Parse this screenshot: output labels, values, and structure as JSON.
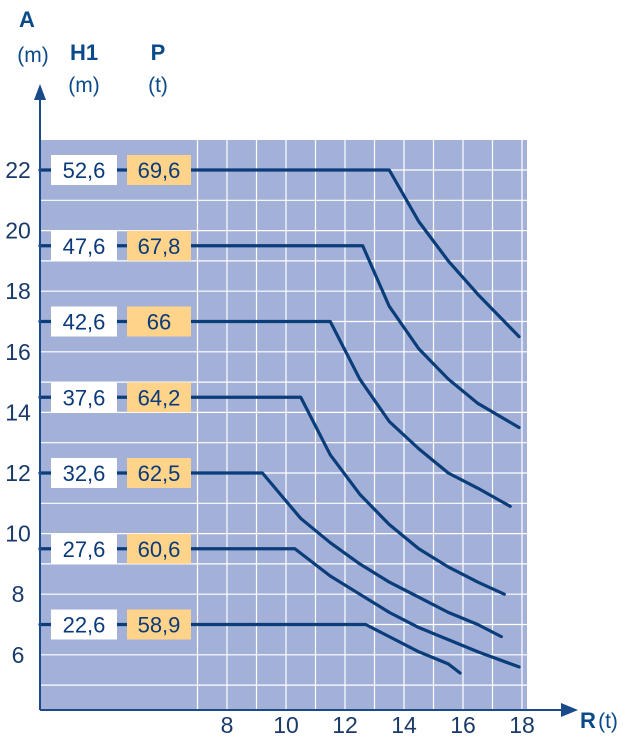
{
  "chart_data": {
    "type": "line",
    "y_axis": {
      "letter": "A",
      "unit": "(m)",
      "ticks": [
        6,
        8,
        10,
        12,
        14,
        16,
        18,
        20,
        22
      ]
    },
    "x_axis": {
      "letter": "R",
      "unit": "(t)",
      "ticks": [
        8,
        10,
        12,
        14,
        16,
        18
      ]
    },
    "column_headers": [
      {
        "title": "H1",
        "unit": "(m)"
      },
      {
        "title": "P",
        "unit": "(t)"
      }
    ],
    "grid": true,
    "colors": {
      "plot_bg": "#a3b1d9",
      "grid": "#ffffff",
      "line": "#0a3d7a",
      "box_p": "#ffd38a",
      "box_h": "#ffffff"
    },
    "series": [
      {
        "H1": "52,6",
        "P": "69,6",
        "A": 22,
        "points": [
          [
            13.5,
            22
          ],
          [
            14.5,
            20.3
          ],
          [
            15.5,
            19.0
          ],
          [
            16.5,
            17.9
          ],
          [
            17.5,
            16.9
          ],
          [
            17.9,
            16.5
          ]
        ]
      },
      {
        "H1": "47,6",
        "P": "67,8",
        "A": 19.5,
        "points": [
          [
            12.6,
            19.5
          ],
          [
            13.5,
            17.5
          ],
          [
            14.5,
            16.1
          ],
          [
            15.5,
            15.1
          ],
          [
            16.5,
            14.3
          ],
          [
            17.9,
            13.5
          ]
        ]
      },
      {
        "H1": "42,6",
        "P": "66",
        "A": 17,
        "points": [
          [
            11.5,
            17
          ],
          [
            12.5,
            15.1
          ],
          [
            13.5,
            13.7
          ],
          [
            14.5,
            12.8
          ],
          [
            15.5,
            12.0
          ],
          [
            16.5,
            11.5
          ],
          [
            17.6,
            10.9
          ]
        ]
      },
      {
        "H1": "37,6",
        "P": "64,2",
        "A": 14.5,
        "points": [
          [
            10.5,
            14.5
          ],
          [
            11.5,
            12.6
          ],
          [
            12.5,
            11.3
          ],
          [
            13.5,
            10.3
          ],
          [
            14.5,
            9.5
          ],
          [
            15.5,
            8.9
          ],
          [
            16.5,
            8.4
          ],
          [
            17.4,
            8.0
          ]
        ]
      },
      {
        "H1": "32,6",
        "P": "62,5",
        "A": 12,
        "points": [
          [
            9.2,
            12
          ],
          [
            10.5,
            10.5
          ],
          [
            11.5,
            9.7
          ],
          [
            12.5,
            9.0
          ],
          [
            13.5,
            8.4
          ],
          [
            14.5,
            7.9
          ],
          [
            15.5,
            7.4
          ],
          [
            16.5,
            7.0
          ],
          [
            17.3,
            6.6
          ]
        ]
      },
      {
        "H1": "27,6",
        "P": "60,6",
        "A": 9.5,
        "points": [
          [
            10.3,
            9.5
          ],
          [
            11.5,
            8.6
          ],
          [
            12.5,
            8.0
          ],
          [
            13.5,
            7.4
          ],
          [
            14.5,
            6.9
          ],
          [
            15.5,
            6.5
          ],
          [
            16.5,
            6.1
          ],
          [
            17.9,
            5.6
          ]
        ]
      },
      {
        "H1": "22,6",
        "P": "58,9",
        "A": 7,
        "points": [
          [
            12.7,
            7
          ],
          [
            13.5,
            6.6
          ],
          [
            14.5,
            6.1
          ],
          [
            15.5,
            5.7
          ],
          [
            15.9,
            5.4
          ]
        ]
      }
    ]
  }
}
